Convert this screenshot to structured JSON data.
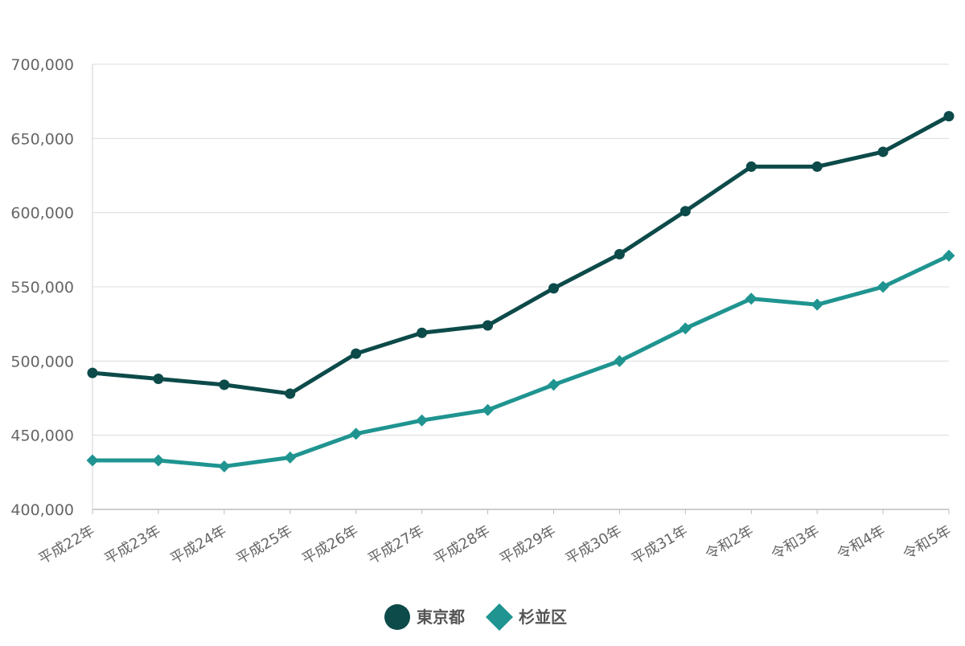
{
  "chart_data": {
    "type": "line",
    "title": "",
    "xlabel": "",
    "ylabel": "",
    "categories": [
      "平成22年",
      "平成23年",
      "平成24年",
      "平成25年",
      "平成26年",
      "平成27年",
      "平成28年",
      "平成29年",
      "平成30年",
      "平成31年",
      "令和2年",
      "令和3年",
      "令和4年",
      "令和5年"
    ],
    "y_ticks": [
      "400,000",
      "450,000",
      "500,000",
      "550,000",
      "600,000",
      "650,000",
      "700,000"
    ],
    "ylim": [
      400000,
      700000
    ],
    "grid": true,
    "legend_position": "bottom",
    "series": [
      {
        "name": "東京都",
        "color": "#0d4a4a",
        "marker": "circle",
        "values": [
          492000,
          488000,
          484000,
          478000,
          505000,
          519000,
          524000,
          549000,
          572000,
          601000,
          631000,
          631000,
          641000,
          665000
        ]
      },
      {
        "name": "杉並区",
        "color": "#1f9490",
        "marker": "diamond",
        "values": [
          433000,
          433000,
          429000,
          435000,
          451000,
          460000,
          467000,
          484000,
          500000,
          522000,
          542000,
          538000,
          550000,
          571000
        ]
      }
    ]
  }
}
